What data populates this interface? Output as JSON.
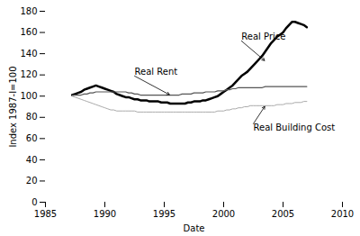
{
  "chart_data": {
    "type": "line",
    "title": "",
    "xlabel": "Date",
    "ylabel": "Index 1987-I=100",
    "xlim": [
      1985,
      2010
    ],
    "ylim": [
      0,
      180
    ],
    "xticks": [
      1985,
      1990,
      1995,
      2000,
      2005,
      2010
    ],
    "yticks": [
      0,
      20,
      40,
      60,
      80,
      100,
      120,
      140,
      160,
      180
    ],
    "grid": false,
    "x": [
      1987.25,
      1987.5,
      1987.75,
      1988.0,
      1988.25,
      1988.5,
      1988.75,
      1989.0,
      1989.25,
      1989.5,
      1989.75,
      1990.0,
      1990.25,
      1990.5,
      1990.75,
      1991.0,
      1991.25,
      1991.5,
      1991.75,
      1992.0,
      1992.25,
      1992.5,
      1992.75,
      1993.0,
      1993.25,
      1993.5,
      1993.75,
      1994.0,
      1994.25,
      1994.5,
      1994.75,
      1995.0,
      1995.25,
      1995.5,
      1995.75,
      1996.0,
      1996.25,
      1996.5,
      1996.75,
      1997.0,
      1997.25,
      1997.5,
      1997.75,
      1998.0,
      1998.25,
      1998.5,
      1998.75,
      1999.0,
      1999.25,
      1999.5,
      1999.75,
      2000.0,
      2000.25,
      2000.5,
      2000.75,
      2001.0,
      2001.25,
      2001.5,
      2001.75,
      2002.0,
      2002.25,
      2002.5,
      2002.75,
      2003.0,
      2003.25,
      2003.5,
      2003.75,
      2004.0,
      2004.25,
      2004.5,
      2004.75,
      2005.0,
      2005.25,
      2005.5,
      2005.75,
      2006.0,
      2006.25,
      2006.5,
      2006.75,
      2007.0
    ],
    "series": [
      {
        "color": "#000000",
        "values": [
          101,
          102,
          103,
          104,
          106,
          107,
          108,
          109,
          110,
          109,
          108,
          107,
          106,
          105,
          104,
          102,
          101,
          100,
          99,
          99,
          98,
          97,
          97,
          96,
          96,
          96,
          95,
          95,
          95,
          95,
          94,
          94,
          94,
          93,
          93,
          93,
          93,
          93,
          93,
          94,
          94,
          95,
          95,
          95,
          96,
          96,
          97,
          98,
          99,
          100,
          102,
          104,
          106,
          108,
          110,
          113,
          116,
          119,
          121,
          123,
          126,
          129,
          132,
          135,
          138,
          142,
          146,
          150,
          153,
          156,
          158,
          160,
          164,
          167,
          170,
          170,
          169,
          168,
          167,
          165
        ]
      },
      {
        "color": "#555555",
        "values": [
          101,
          101,
          101,
          101,
          102,
          102,
          103,
          103,
          104,
          104,
          104,
          104,
          104,
          104,
          104,
          104,
          104,
          104,
          104,
          103,
          103,
          102,
          102,
          101,
          101,
          101,
          101,
          101,
          101,
          101,
          101,
          101,
          101,
          101,
          101,
          101,
          101,
          102,
          102,
          102,
          102,
          103,
          103,
          103,
          103,
          104,
          104,
          104,
          104,
          105,
          105,
          105,
          106,
          106,
          107,
          107,
          108,
          108,
          108,
          108,
          108,
          108,
          108,
          108,
          108,
          109,
          109,
          109,
          109,
          109,
          109,
          109,
          109,
          109,
          109,
          109,
          109,
          109,
          109,
          109
        ]
      },
      {
        "color": "#aaaaaa",
        "values": [
          100,
          99,
          98,
          97,
          96,
          95,
          94,
          93,
          92,
          91,
          90,
          89,
          88,
          87,
          87,
          86,
          86,
          86,
          86,
          86,
          86,
          86,
          85,
          85,
          85,
          85,
          85,
          85,
          85,
          85,
          85,
          85,
          85,
          85,
          85,
          85,
          85,
          85,
          85,
          85,
          85,
          85,
          85,
          85,
          85,
          85,
          85,
          85,
          85,
          86,
          86,
          86,
          87,
          87,
          88,
          88,
          89,
          89,
          90,
          90,
          91,
          91,
          91,
          91,
          91,
          91,
          91,
          91,
          91,
          92,
          92,
          92,
          93,
          93,
          93,
          94,
          94,
          94,
          95,
          95
        ]
      }
    ],
    "annotations": [
      {
        "text": "Real Price",
        "xy": [
          2003.5,
          133
        ],
        "xytext": [
          2001.5,
          152
        ]
      },
      {
        "text": "Real Rent",
        "xy": [
          1995.5,
          101
        ],
        "xytext": [
          1992.5,
          119
        ]
      },
      {
        "text": "Real Building Cost",
        "xy": [
          2003.5,
          91
        ],
        "xytext": [
          2002.5,
          74
        ]
      }
    ]
  }
}
